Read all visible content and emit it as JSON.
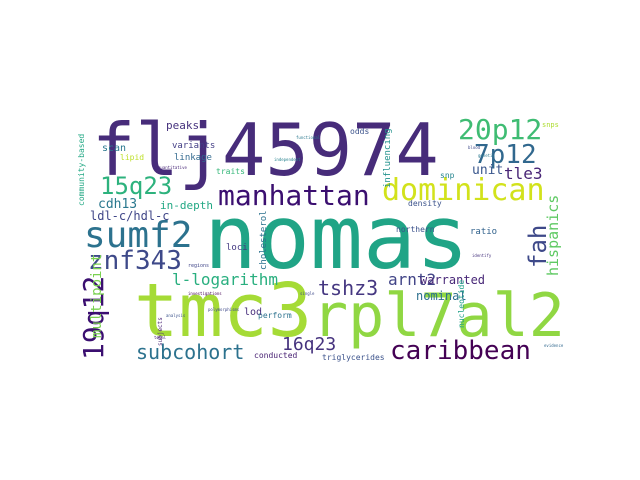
{
  "words": [
    {
      "t": "flj45974",
      "c": "#472c7a"
    },
    {
      "t": "nomas",
      "c": "#20a486"
    },
    {
      "t": "tmc3",
      "c": "#a5db36"
    },
    {
      "t": "rpl7al2",
      "c": "#90d743"
    },
    {
      "t": "dominican",
      "c": "#d2e21b"
    },
    {
      "t": "manhattan",
      "c": "#3b0f70"
    },
    {
      "t": "sumf2",
      "c": "#2c728e"
    },
    {
      "t": "znf343",
      "c": "#3e4989"
    },
    {
      "t": "caribbean",
      "c": "#440154"
    },
    {
      "t": "20p12",
      "c": "#3fbc73"
    },
    {
      "t": "7p12",
      "c": "#31688e"
    },
    {
      "t": "15q23",
      "c": "#2db27d"
    },
    {
      "t": "fah",
      "c": "#3e4989"
    },
    {
      "t": "19q12",
      "c": "#3b0f70"
    },
    {
      "t": "tshz3",
      "c": "#453781"
    },
    {
      "t": "subcohort",
      "c": "#2c728e"
    },
    {
      "t": "16q23",
      "c": "#46337e"
    },
    {
      "t": "l-logarithm",
      "c": "#29af7f"
    },
    {
      "t": "hispanics",
      "c": "#5ec962"
    },
    {
      "t": "arnt2",
      "c": "#414487"
    },
    {
      "t": "tle3",
      "c": "#482576"
    },
    {
      "t": "unit",
      "c": "#39568c"
    },
    {
      "t": "warranted",
      "c": "#482878"
    },
    {
      "t": "nominal",
      "c": "#2d708e"
    },
    {
      "t": "multipoint",
      "c": "#7ad151"
    },
    {
      "t": "cdh13",
      "c": "#2a788e"
    },
    {
      "t": "ldl-c/hdl-c",
      "c": "#404688"
    },
    {
      "t": "in-depth",
      "c": "#22a884"
    },
    {
      "t": "peaks",
      "c": "#46327e"
    },
    {
      "t": "scan",
      "c": "#2a788e"
    },
    {
      "t": "variants",
      "c": "#433e85"
    },
    {
      "t": "linkage",
      "c": "#31688e"
    },
    {
      "t": "traits",
      "c": "#35b779"
    },
    {
      "t": "lipid",
      "c": "#bddf26"
    },
    {
      "t": "loci",
      "c": "#443a83"
    },
    {
      "t": "lod",
      "c": "#472d7b"
    },
    {
      "t": "perform",
      "c": "#2c728e"
    },
    {
      "t": "conducted",
      "c": "#482173"
    },
    {
      "t": "triglycerides",
      "c": "#3b528b"
    },
    {
      "t": "cholesterol",
      "c": "#2c728e"
    },
    {
      "t": "northern",
      "c": "#3b528b"
    },
    {
      "t": "ratio",
      "c": "#33638d"
    },
    {
      "t": "density",
      "c": "#3b528b"
    },
    {
      "t": "snp",
      "c": "#25848e"
    },
    {
      "t": "odds",
      "c": "#3b528b"
    },
    {
      "t": "influencing",
      "c": "#21918c"
    },
    {
      "t": "nucleotide",
      "c": "#1fa088"
    },
    {
      "t": "community-based",
      "c": "#22a884"
    },
    {
      "t": "snps",
      "c": "#addc30"
    },
    {
      "t": "subjects",
      "c": "#482475"
    },
    {
      "t": "regions",
      "c": "#404688"
    },
    {
      "t": "investigations",
      "c": "#440154"
    },
    {
      "t": "analysis",
      "c": "#3b528b"
    },
    {
      "t": "polymorphisms",
      "c": "#3e4989"
    },
    {
      "t": "genetic",
      "c": "#2a788e"
    },
    {
      "t": "blood",
      "c": "#3e4989"
    },
    {
      "t": "identify",
      "c": "#46337e"
    },
    {
      "t": "independent",
      "c": "#26828e"
    },
    {
      "t": "functional",
      "c": "#2a788e"
    },
    {
      "t": "quantitative",
      "c": "#482878"
    },
    {
      "t": "evidence",
      "c": "#31688e"
    },
    {
      "t": "single",
      "c": "#3e4989"
    },
    {
      "t": "total",
      "c": "#482475"
    }
  ]
}
